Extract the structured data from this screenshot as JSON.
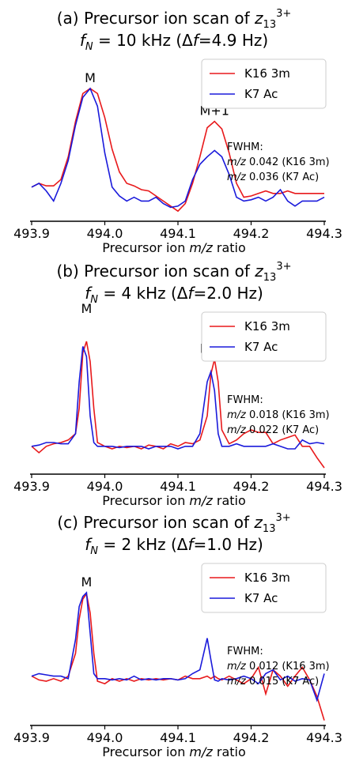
{
  "chart_data": [
    {
      "type": "line",
      "title": [
        [
          "(a) Precursor ion scan of ",
          "z",
          "13",
          "3+"
        ],
        [
          "f",
          "N",
          " = 10 kHz (Δ",
          "f",
          "=4.9 Hz)"
        ]
      ],
      "xlabel": [
        "Precursor ion ",
        "m/z",
        " ratio"
      ],
      "x": [
        493.9,
        493.91,
        493.92,
        493.93,
        493.94,
        493.95,
        493.96,
        493.97,
        493.98,
        493.99,
        494.0,
        494.01,
        494.02,
        494.03,
        494.04,
        494.05,
        494.06,
        494.07,
        494.08,
        494.09,
        494.1,
        494.11,
        494.12,
        494.13,
        494.14,
        494.15,
        494.16,
        494.17,
        494.18,
        494.19,
        494.2,
        494.21,
        494.22,
        494.23,
        494.24,
        494.25,
        494.26,
        494.27,
        494.28,
        494.29,
        494.3
      ],
      "series": [
        {
          "name": "K16 3m",
          "color": "#e8191b",
          "values": [
            0.22,
            0.25,
            0.23,
            0.23,
            0.28,
            0.46,
            0.74,
            0.96,
            1.0,
            0.96,
            0.77,
            0.52,
            0.34,
            0.25,
            0.23,
            0.2,
            0.19,
            0.15,
            0.11,
            0.07,
            0.03,
            0.09,
            0.25,
            0.46,
            0.69,
            0.74,
            0.68,
            0.49,
            0.25,
            0.14,
            0.15,
            0.17,
            0.19,
            0.17,
            0.17,
            0.19,
            0.17,
            0.17,
            0.17,
            0.17,
            0.17
          ]
        },
        {
          "name": "K7 Ac",
          "color": "#1a1adb",
          "values": [
            0.22,
            0.25,
            0.19,
            0.11,
            0.25,
            0.43,
            0.71,
            0.93,
            1.0,
            0.86,
            0.49,
            0.22,
            0.15,
            0.11,
            0.14,
            0.11,
            0.11,
            0.14,
            0.09,
            0.06,
            0.07,
            0.11,
            0.28,
            0.4,
            0.46,
            0.51,
            0.46,
            0.32,
            0.14,
            0.11,
            0.12,
            0.14,
            0.11,
            0.14,
            0.2,
            0.11,
            0.07,
            0.11,
            0.11,
            0.11,
            0.14
          ]
        }
      ],
      "xlim": [
        493.9,
        494.3
      ],
      "xticks": [
        493.9,
        {
          "value": 494,
          "label": "494.0"
        },
        494.1,
        494.2,
        494.3
      ],
      "ylim": [
        -0.05,
        1.0
      ],
      "legend": "upper right",
      "annotations": [
        {
          "text": "M"
        },
        {
          "text": "M+1"
        }
      ],
      "fwhm": {
        "title": "FWHM:",
        "lines": [
          [
            "m/z",
            " 0.042 (K16 3m)"
          ],
          [
            "m/z",
            " 0.036 (K7 Ac)"
          ]
        ]
      }
    },
    {
      "type": "line",
      "title": [
        [
          "(b) Precursor ion scan of ",
          "z",
          "13",
          "3+"
        ],
        [
          "f",
          "N",
          " = 4 kHz (Δ",
          "f",
          "=2.0 Hz)"
        ]
      ],
      "xlabel": [
        "Precursor ion ",
        "m/z",
        " ratio"
      ],
      "x": [
        493.9,
        493.91,
        493.92,
        493.93,
        493.94,
        493.95,
        493.96,
        493.965,
        493.97,
        493.975,
        493.98,
        493.985,
        493.99,
        494.0,
        494.01,
        494.02,
        494.03,
        494.04,
        494.05,
        494.06,
        494.07,
        494.08,
        494.09,
        494.1,
        494.11,
        494.12,
        494.13,
        494.14,
        494.145,
        494.15,
        494.155,
        494.16,
        494.17,
        494.18,
        494.19,
        494.2,
        494.21,
        494.22,
        494.23,
        494.24,
        494.25,
        494.26,
        494.27,
        494.28,
        494.29,
        494.3
      ],
      "series": [
        {
          "name": "K16 3m",
          "color": "#e8191b",
          "values": [
            0.17,
            0.12,
            0.17,
            0.19,
            0.2,
            0.22,
            0.27,
            0.47,
            0.91,
            1.0,
            0.84,
            0.47,
            0.2,
            0.17,
            0.15,
            0.17,
            0.16,
            0.17,
            0.15,
            0.18,
            0.17,
            0.15,
            0.19,
            0.17,
            0.2,
            0.19,
            0.22,
            0.41,
            0.74,
            0.86,
            0.68,
            0.3,
            0.19,
            0.22,
            0.27,
            0.3,
            0.28,
            0.28,
            0.19,
            0.22,
            0.24,
            0.26,
            0.17,
            0.17,
            0.08,
            0.0
          ]
        },
        {
          "name": "K7 Ac",
          "color": "#1a1adb",
          "values": [
            0.17,
            0.18,
            0.2,
            0.2,
            0.19,
            0.19,
            0.27,
            0.68,
            0.96,
            0.88,
            0.41,
            0.2,
            0.17,
            0.17,
            0.17,
            0.16,
            0.17,
            0.17,
            0.17,
            0.15,
            0.17,
            0.17,
            0.17,
            0.15,
            0.17,
            0.17,
            0.27,
            0.68,
            0.76,
            0.61,
            0.27,
            0.17,
            0.17,
            0.19,
            0.17,
            0.17,
            0.17,
            0.17,
            0.19,
            0.17,
            0.15,
            0.15,
            0.22,
            0.19,
            0.2,
            0.19
          ]
        }
      ],
      "xlim": [
        493.9,
        494.3
      ],
      "xticks": [
        493.9,
        {
          "value": 494,
          "label": "494.0"
        },
        494.1,
        494.2,
        494.3
      ],
      "ylim": [
        -0.05,
        1.0
      ],
      "legend": "upper right",
      "annotations": [
        {
          "text": "M"
        },
        {
          "text": "M+1"
        }
      ],
      "fwhm": {
        "title": "FWHM:",
        "lines": [
          [
            "m/z",
            " 0.018 (K16 3m)"
          ],
          [
            "m/z",
            " 0.022 (K7 Ac)"
          ]
        ]
      }
    },
    {
      "type": "line",
      "title": [
        [
          "(c) Precursor ion scan of ",
          "z",
          "13",
          "3+"
        ],
        [
          "f",
          "N",
          " = 2 kHz (Δ",
          "f",
          "=1.0 Hz)"
        ]
      ],
      "xlabel": [
        "Precursor ion ",
        "m/z",
        " ratio"
      ],
      "x": [
        493.9,
        493.91,
        493.92,
        493.93,
        493.94,
        493.95,
        493.96,
        493.965,
        493.97,
        493.975,
        493.98,
        493.985,
        493.99,
        494.0,
        494.01,
        494.02,
        494.03,
        494.04,
        494.05,
        494.06,
        494.07,
        494.08,
        494.09,
        494.1,
        494.11,
        494.12,
        494.13,
        494.14,
        494.145,
        494.15,
        494.155,
        494.16,
        494.17,
        494.18,
        494.19,
        494.2,
        494.21,
        494.22,
        494.23,
        494.24,
        494.25,
        494.26,
        494.27,
        494.28,
        494.29,
        494.3
      ],
      "series": [
        {
          "name": "K16 3m",
          "color": "#e8191b",
          "values": [
            0.34,
            0.31,
            0.3,
            0.32,
            0.3,
            0.34,
            0.52,
            0.79,
            0.95,
            0.99,
            0.84,
            0.52,
            0.3,
            0.28,
            0.32,
            0.3,
            0.32,
            0.3,
            0.32,
            0.31,
            0.32,
            0.31,
            0.32,
            0.31,
            0.34,
            0.32,
            0.32,
            0.34,
            0.32,
            0.34,
            0.32,
            0.31,
            0.34,
            0.31,
            0.28,
            0.32,
            0.41,
            0.2,
            0.39,
            0.34,
            0.26,
            0.34,
            0.41,
            0.31,
            0.18,
            -0.01
          ]
        },
        {
          "name": "K7 Ac",
          "color": "#1a1adb",
          "values": [
            0.34,
            0.36,
            0.35,
            0.34,
            0.34,
            0.32,
            0.63,
            0.89,
            0.97,
            1.0,
            0.68,
            0.36,
            0.32,
            0.32,
            0.31,
            0.32,
            0.31,
            0.34,
            0.31,
            0.32,
            0.31,
            0.32,
            0.32,
            0.31,
            0.32,
            0.36,
            0.39,
            0.64,
            0.47,
            0.31,
            0.3,
            0.32,
            0.31,
            0.32,
            0.34,
            0.32,
            0.28,
            0.36,
            0.39,
            0.31,
            0.34,
            0.3,
            0.32,
            0.31,
            0.15,
            0.36
          ]
        }
      ],
      "xlim": [
        493.9,
        494.3
      ],
      "xticks": [
        493.9,
        {
          "value": 494,
          "label": "494.0"
        },
        494.1,
        494.2,
        494.3
      ],
      "ylim": [
        -0.05,
        1.0
      ],
      "legend": "upper right",
      "annotations": [
        {
          "text": "M"
        }
      ],
      "fwhm": {
        "title": "FWHM:",
        "lines": [
          [
            "m/z",
            " 0.012 (K16 3m)"
          ],
          [
            "m/z",
            " 0.015 (K7 Ac)"
          ]
        ]
      }
    }
  ]
}
